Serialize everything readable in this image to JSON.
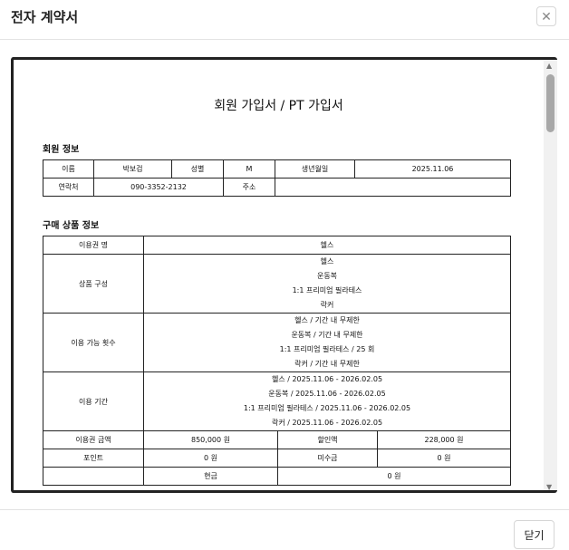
{
  "dialog": {
    "title": "전자 계약서",
    "close_icon": "close-icon",
    "close_button": "닫기"
  },
  "document": {
    "title": "회원 가입서 / PT 가입서",
    "member_section": "회원 정보",
    "member": {
      "name_label": "이름",
      "name": "박보검",
      "gender_label": "성별",
      "gender": "M",
      "birth_label": "생년월일",
      "birth": "2025.11.06",
      "phone_label": "연락처",
      "phone": "090-3352-2132",
      "address_label": "주소",
      "address": ""
    },
    "purchase_section": "구매 상품 정보",
    "purchase": {
      "ticket_label": "이용권 명",
      "ticket": "헬스",
      "composition_label": "상품 구성",
      "composition": [
        "헬스",
        "운동복",
        "1:1 프리미엄 필라테스",
        "락커"
      ],
      "count_label": "이용 가능 횟수",
      "counts": [
        "헬스 / 기간 내 무제한",
        "운동복 / 기간 내 무제한",
        "1:1 프리미엄 필라테스 / 25 회",
        "락커 / 기간 내 무제한"
      ],
      "period_label": "이용 기간",
      "periods": [
        "헬스 / 2025.11.06 - 2026.02.05",
        "운동복 / 2025.11.06 - 2026.02.05",
        "1:1 프리미엄 필라테스 / 2025.11.06 - 2026.02.05",
        "락커 / 2025.11.06 - 2026.02.05"
      ],
      "price_label": "이용권 금액",
      "price": "850,000 원",
      "discount_label": "할인액",
      "discount": "228,000 원",
      "point_label": "포인트",
      "point": "0 원",
      "unpaid_label": "미수금",
      "unpaid": "0 원",
      "cash_label": "현금",
      "cash": "0 원"
    }
  }
}
